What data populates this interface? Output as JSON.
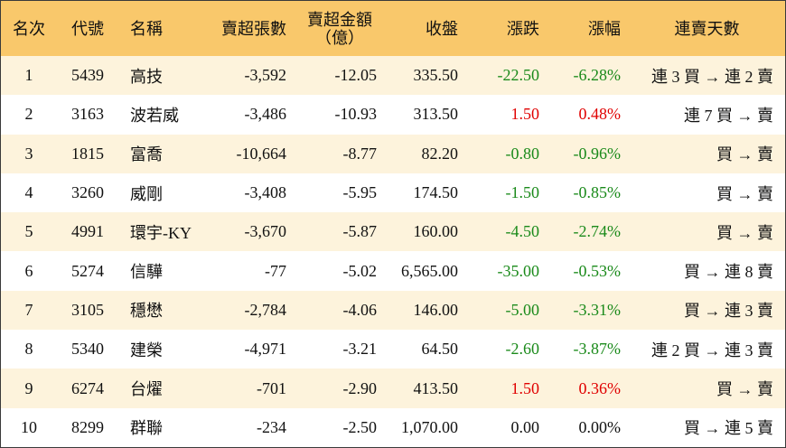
{
  "table": {
    "headers": [
      "名次",
      "代號",
      "名稱",
      "賣超張數",
      "賣超金額\n（億）",
      "收盤",
      "漲跌",
      "漲幅",
      "連賣天數"
    ],
    "rows": [
      [
        "1",
        "5439",
        "高技",
        "-3,592",
        "-12.05",
        "335.50",
        "-22.50",
        "-6.28%",
        "連 3 買 → 連 2 賣"
      ],
      [
        "2",
        "3163",
        "波若威",
        "-3,486",
        "-10.93",
        "313.50",
        "1.50",
        "0.48%",
        "連 7 買 → 賣"
      ],
      [
        "3",
        "1815",
        "富喬",
        "-10,664",
        "-8.77",
        "82.20",
        "-0.80",
        "-0.96%",
        "買 → 賣"
      ],
      [
        "4",
        "3260",
        "威剛",
        "-3,408",
        "-5.95",
        "174.50",
        "-1.50",
        "-0.85%",
        "買 → 賣"
      ],
      [
        "5",
        "4991",
        "環宇-KY",
        "-3,670",
        "-5.87",
        "160.00",
        "-4.50",
        "-2.74%",
        "買 → 賣"
      ],
      [
        "6",
        "5274",
        "信驊",
        "-77",
        "-5.02",
        "6,565.00",
        "-35.00",
        "-0.53%",
        "買 → 連 8 賣"
      ],
      [
        "7",
        "3105",
        "穩懋",
        "-2,784",
        "-4.06",
        "146.00",
        "-5.00",
        "-3.31%",
        "買 → 連 3 賣"
      ],
      [
        "8",
        "5340",
        "建榮",
        "-4,971",
        "-3.21",
        "64.50",
        "-2.60",
        "-3.87%",
        "連 2 買 → 連 3 賣"
      ],
      [
        "9",
        "6274",
        "台燿",
        "-701",
        "-2.90",
        "413.50",
        "1.50",
        "0.36%",
        "買 → 賣"
      ],
      [
        "10",
        "8299",
        "群聯",
        "-234",
        "-2.50",
        "1,070.00",
        "0.00",
        "0.00%",
        "買 → 連 5 賣"
      ]
    ]
  }
}
